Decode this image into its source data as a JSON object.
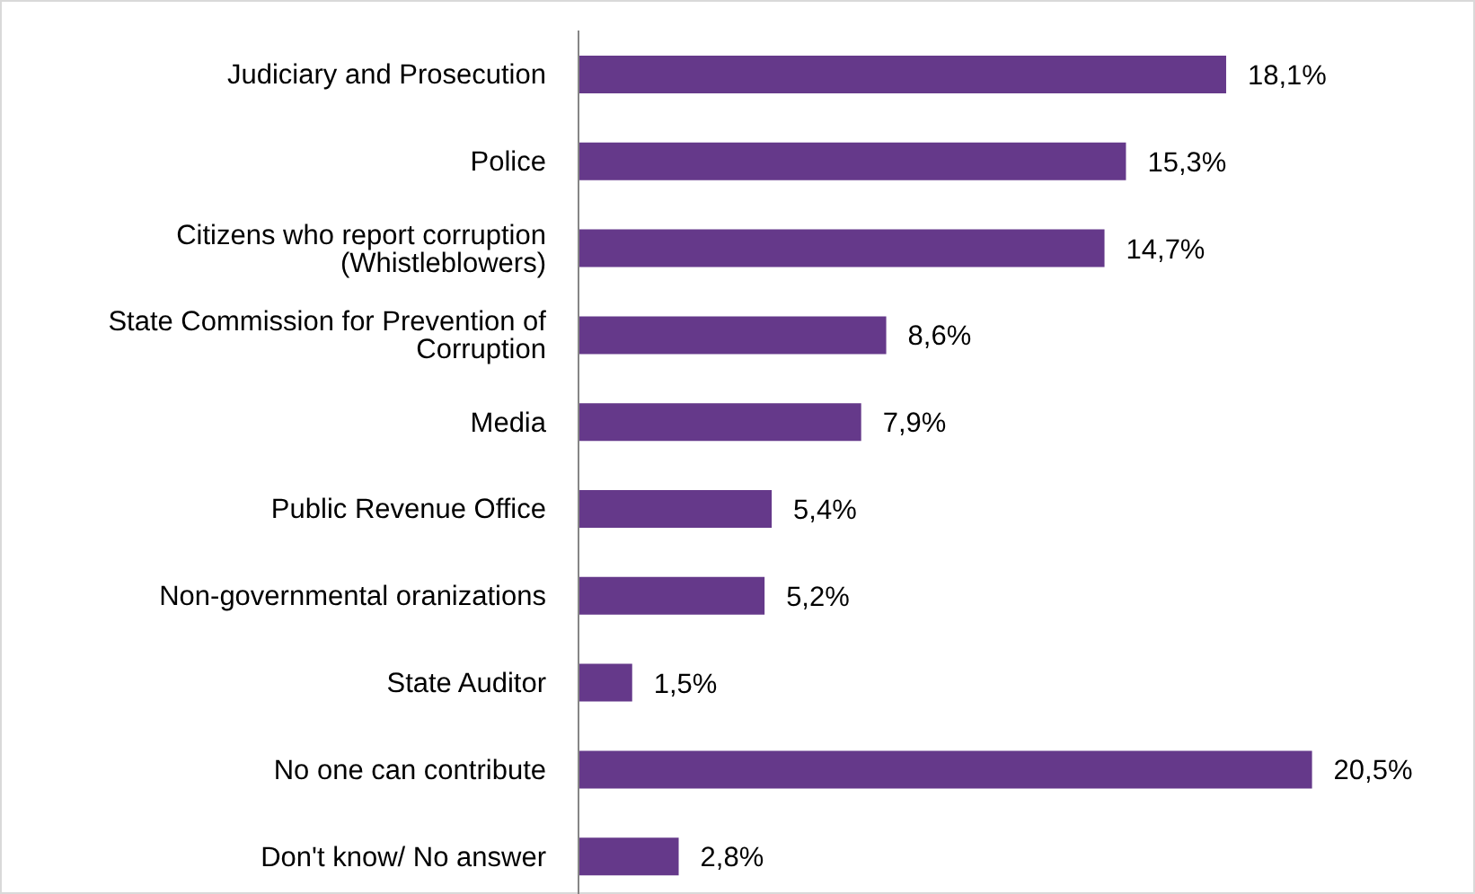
{
  "chart_data": {
    "type": "bar",
    "orientation": "horizontal",
    "categories": [
      "Judiciary and Prosecution",
      "Police",
      "Citizens who report corruption (Whistleblowers)",
      "State Commission for Prevention of Corruption",
      "Media",
      "Public Revenue Office",
      "Non-governmental oranizations",
      "State Auditor",
      "No one can contribute",
      "Don't know/ No answer"
    ],
    "values": [
      18.1,
      15.3,
      14.7,
      8.6,
      7.9,
      5.4,
      5.2,
      1.5,
      20.5,
      2.8
    ],
    "value_labels": [
      "18,1%",
      "15,3%",
      "14,7%",
      "8,6%",
      "7,9%",
      "5,4%",
      "5,2%",
      "1,5%",
      "20,5%",
      "2,8%"
    ],
    "color": "#65398a",
    "grid": false,
    "legend": false,
    "tick_labels": "y"
  }
}
